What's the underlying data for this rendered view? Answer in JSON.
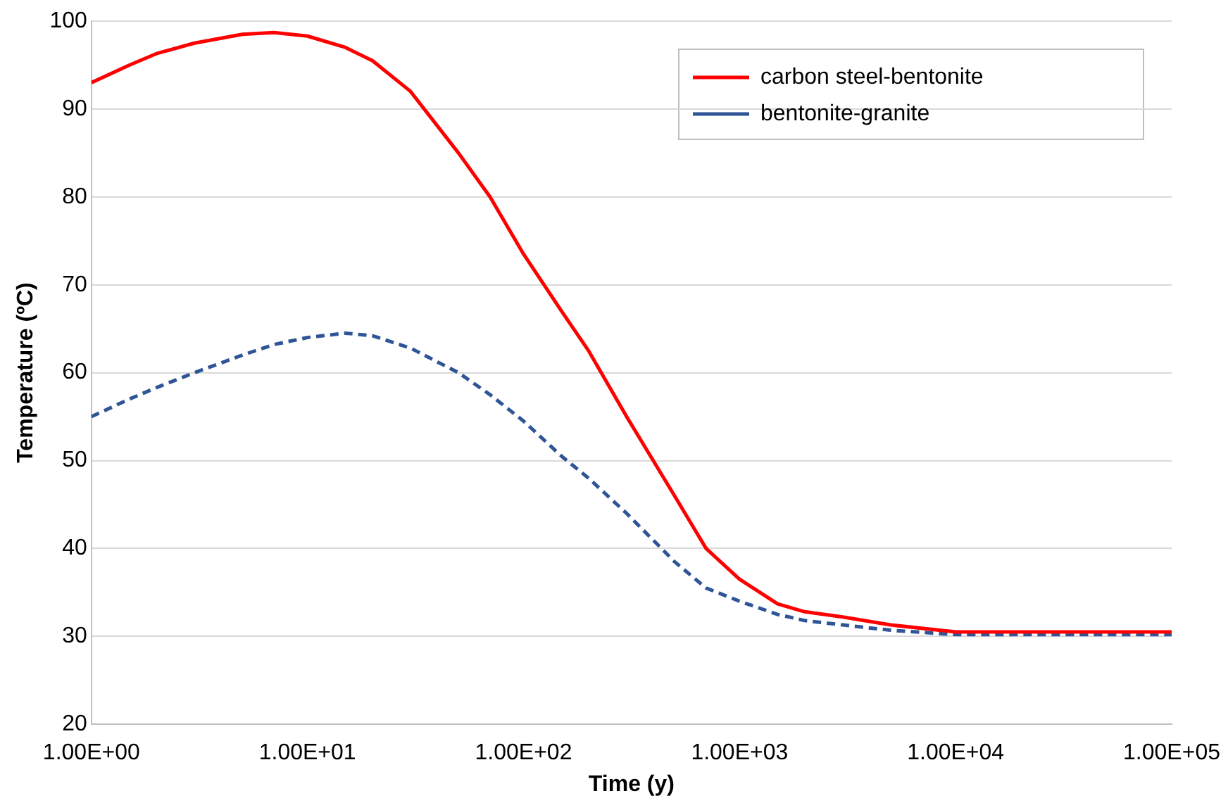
{
  "chart_data": {
    "type": "line",
    "xlabel": "Time (y)",
    "ylabel": "Temperature (ºC)",
    "log": "x",
    "xlim": [
      1,
      100000
    ],
    "xticks": [
      {
        "value": 1,
        "label": "1.00E+00"
      },
      {
        "value": 10,
        "label": "1.00E+01"
      },
      {
        "value": 100,
        "label": "1.00E+02"
      },
      {
        "value": 1000,
        "label": "1.00E+03"
      },
      {
        "value": 10000,
        "label": "1.00E+04"
      },
      {
        "value": 100000,
        "label": "1.00E+05"
      }
    ],
    "ylim": [
      20,
      100
    ],
    "yticks": [
      20,
      30,
      40,
      50,
      60,
      70,
      80,
      90,
      100
    ],
    "grid": "y",
    "legend": "top right",
    "marker": "none",
    "x": [
      1,
      1.5,
      2,
      3,
      5,
      7,
      10,
      15,
      20,
      30,
      50,
      70,
      100,
      150,
      200,
      300,
      500,
      700,
      1000,
      1500,
      2000,
      3000,
      5000,
      10000,
      100000
    ],
    "series": [
      {
        "name": "carbon steel-bentonite",
        "color": "#ff0000",
        "line_style": "solid",
        "values": [
          93,
          95,
          96.3,
          97.5,
          98.5,
          98.7,
          98.3,
          97,
          95.5,
          92,
          85,
          80,
          73.5,
          67,
          62.5,
          55,
          46,
          40,
          36.5,
          33.7,
          32.8,
          32.2,
          31.3,
          30.5,
          30.5
        ]
      },
      {
        "name": "bentonite-granite",
        "color": "#2f5597",
        "line_style": "dashed",
        "values": [
          55,
          57,
          58.3,
          60,
          62,
          63.2,
          64,
          64.5,
          64.2,
          62.8,
          60,
          57.5,
          54.5,
          50.5,
          48,
          44,
          38.5,
          35.5,
          34,
          32.5,
          31.8,
          31.3,
          30.7,
          30.2,
          30.2
        ]
      }
    ]
  }
}
